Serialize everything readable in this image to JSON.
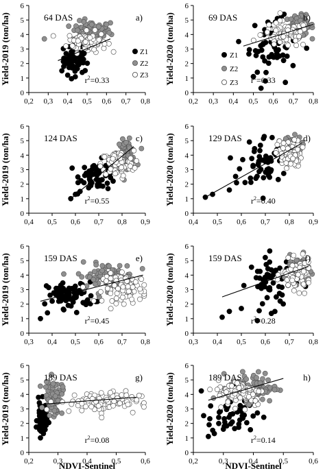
{
  "figure": {
    "xlabel": "NDVI-Sentinel",
    "legend": [
      "Z1",
      "Z2",
      "Z3"
    ]
  },
  "zone_colors": {
    "Z1": "#000000",
    "Z2": "#8f8f8f",
    "Z3": "#ffffff"
  },
  "chart_data": [
    {
      "type": "scatter",
      "panel": "a)",
      "das": "64 DAS",
      "r2": "0.33",
      "ylabel": "Yield-2019 (ton/ha)",
      "xlim": [
        0.2,
        0.8
      ],
      "xticks": [
        "0,2",
        "0,3",
        "0,4",
        "0,5",
        "0,6",
        "0,7",
        "0,8"
      ],
      "ylim": [
        0,
        6
      ],
      "yticks": [
        "0",
        "1",
        "2",
        "3",
        "4",
        "5",
        "6"
      ],
      "legend": false,
      "trendline": {
        "x": [
          0.35,
          0.62
        ],
        "y": [
          2.2,
          3.7
        ]
      },
      "series": [
        {
          "zone": "Z1",
          "cx": 0.45,
          "cy": 2.4,
          "sx": 0.035,
          "sy": 0.5,
          "n": 60,
          "points": [
            [
              0.37,
              1.5
            ],
            [
              0.38,
              1.8
            ],
            [
              0.4,
              1.2
            ],
            [
              0.42,
              0.95
            ],
            [
              0.41,
              2.1
            ]
          ]
        },
        {
          "zone": "Z2",
          "cx": 0.52,
          "cy": 4.2,
          "sx": 0.05,
          "sy": 0.35,
          "n": 70,
          "points": [
            [
              0.28,
              3.7
            ],
            [
              0.62,
              4.8
            ],
            [
              0.6,
              4.7
            ]
          ]
        },
        {
          "zone": "Z3",
          "cx": 0.5,
          "cy": 3.5,
          "sx": 0.05,
          "sy": 0.35,
          "n": 80,
          "points": []
        }
      ]
    },
    {
      "type": "scatter",
      "panel": "b)",
      "das": "69 DAS",
      "r2": "0.33",
      "ylabel": "Yield-2020 (ton/ha)",
      "xlim": [
        0.2,
        0.8
      ],
      "xticks": [
        "0,2",
        "0,3",
        "0,4",
        "0,5",
        "0,6",
        "0,7",
        "0,8"
      ],
      "ylim": [
        0,
        6
      ],
      "yticks": [
        "0",
        "1",
        "2",
        "3",
        "4",
        "5",
        "6"
      ],
      "legend": true,
      "trendline": {
        "x": [
          0.45,
          0.8
        ],
        "y": [
          3.2,
          4.7
        ]
      },
      "series": [
        {
          "zone": "Z1",
          "cx": 0.6,
          "cy": 3.3,
          "sx": 0.06,
          "sy": 0.9,
          "n": 60,
          "points": [
            [
              0.62,
              5.1
            ],
            [
              0.64,
              5.2
            ],
            [
              0.5,
              1.1
            ],
            [
              0.52,
              1.4
            ],
            [
              0.56,
              0.8
            ],
            [
              0.66,
              0.7
            ]
          ]
        },
        {
          "zone": "Z2",
          "cx": 0.73,
          "cy": 4.6,
          "sx": 0.035,
          "sy": 0.35,
          "n": 70,
          "points": []
        },
        {
          "zone": "Z3",
          "cx": 0.66,
          "cy": 4.0,
          "sx": 0.06,
          "sy": 0.45,
          "n": 90,
          "points": []
        }
      ]
    },
    {
      "type": "scatter",
      "panel": "c)",
      "das": "124 DAS",
      "r2": "0.55",
      "ylabel": "Yield-2019 (ton/ha)",
      "xlim": [
        0.4,
        0.9
      ],
      "xticks": [
        "0,4",
        "0,5",
        "0,6",
        "0,7",
        "0,8",
        "0,9"
      ],
      "ylim": [
        0,
        6
      ],
      "yticks": [
        "0",
        "1",
        "2",
        "3",
        "4",
        "5",
        "6"
      ],
      "legend": false,
      "trendline": {
        "x": [
          0.58,
          0.85
        ],
        "y": [
          1.0,
          4.6
        ]
      },
      "series": [
        {
          "zone": "Z1",
          "cx": 0.7,
          "cy": 2.6,
          "sx": 0.04,
          "sy": 0.5,
          "n": 60,
          "points": [
            [
              0.58,
              1.0
            ],
            [
              0.6,
              1.3
            ],
            [
              0.62,
              1.5
            ],
            [
              0.64,
              2.6
            ]
          ]
        },
        {
          "zone": "Z2",
          "cx": 0.82,
          "cy": 4.1,
          "sx": 0.02,
          "sy": 0.45,
          "n": 70,
          "points": []
        },
        {
          "zone": "Z3",
          "cx": 0.78,
          "cy": 3.4,
          "sx": 0.035,
          "sy": 0.45,
          "n": 90,
          "points": []
        }
      ]
    },
    {
      "type": "scatter",
      "panel": "d)",
      "das": "129 DAS",
      "r2": "0.40",
      "ylabel": "Yield-2020 (ton/ha)",
      "xlim": [
        0.4,
        0.9
      ],
      "xticks": [
        "0,4",
        "0,5",
        "0,6",
        "0,7",
        "0,8",
        "0,9"
      ],
      "ylim": [
        0,
        6
      ],
      "yticks": [
        "0",
        "1",
        "2",
        "3",
        "4",
        "5",
        "6"
      ],
      "legend": false,
      "trendline": {
        "x": [
          0.45,
          0.85
        ],
        "y": [
          1.1,
          4.8
        ]
      },
      "series": [
        {
          "zone": "Z1",
          "cx": 0.7,
          "cy": 3.6,
          "sx": 0.05,
          "sy": 0.9,
          "n": 60,
          "points": [
            [
              0.45,
              1.1
            ],
            [
              0.48,
              1.3
            ],
            [
              0.55,
              1.6
            ],
            [
              0.58,
              2.1
            ]
          ]
        },
        {
          "zone": "Z2",
          "cx": 0.81,
          "cy": 4.6,
          "sx": 0.02,
          "sy": 0.35,
          "n": 70,
          "points": []
        },
        {
          "zone": "Z3",
          "cx": 0.8,
          "cy": 4.1,
          "sx": 0.025,
          "sy": 0.45,
          "n": 90,
          "points": []
        }
      ]
    },
    {
      "type": "scatter",
      "panel": "e)",
      "das": "159 DAS",
      "r2": "0.45",
      "ylabel": "Yield-2019 (ton/ha)",
      "xlim": [
        0.3,
        0.8
      ],
      "xticks": [
        "0,3",
        "0,4",
        "0,5",
        "0,6",
        "0,7",
        "0,8"
      ],
      "ylim": [
        0,
        6
      ],
      "yticks": [
        "0",
        "1",
        "2",
        "3",
        "4",
        "5",
        "6"
      ],
      "legend": false,
      "trendline": {
        "x": [
          0.35,
          0.79
        ],
        "y": [
          2.2,
          4.0
        ]
      },
      "series": [
        {
          "zone": "Z1",
          "cx": 0.48,
          "cy": 2.6,
          "sx": 0.05,
          "sy": 0.45,
          "n": 80,
          "points": [
            [
              0.35,
              1.0
            ],
            [
              0.38,
              1.4
            ]
          ]
        },
        {
          "zone": "Z2",
          "cx": 0.63,
          "cy": 3.9,
          "sx": 0.06,
          "sy": 0.45,
          "n": 80,
          "points": []
        },
        {
          "zone": "Z3",
          "cx": 0.72,
          "cy": 3.1,
          "sx": 0.05,
          "sy": 0.5,
          "n": 80,
          "points": []
        }
      ]
    },
    {
      "type": "scatter",
      "panel": "f)",
      "das": "159 DAS",
      "r2": "0.28",
      "ylabel": "Yield-2020 (ton/ha)",
      "xlim": [
        0.3,
        0.8
      ],
      "xticks": [
        "0,3",
        "0,4",
        "0,5",
        "0,6",
        "0,7",
        "0,8"
      ],
      "ylim": [
        0,
        6
      ],
      "yticks": [
        "0",
        "1",
        "2",
        "3",
        "4",
        "5",
        "6"
      ],
      "legend": false,
      "trendline": {
        "x": [
          0.42,
          0.78
        ],
        "y": [
          2.5,
          4.6
        ]
      },
      "series": [
        {
          "zone": "Z1",
          "cx": 0.63,
          "cy": 3.5,
          "sx": 0.05,
          "sy": 0.9,
          "n": 60,
          "points": [
            [
              0.42,
              1.1
            ],
            [
              0.45,
              1.5
            ],
            [
              0.5,
              1.7
            ]
          ]
        },
        {
          "zone": "Z2",
          "cx": 0.73,
          "cy": 4.4,
          "sx": 0.025,
          "sy": 0.45,
          "n": 60,
          "points": []
        },
        {
          "zone": "Z3",
          "cx": 0.73,
          "cy": 4.0,
          "sx": 0.03,
          "sy": 0.5,
          "n": 90,
          "points": []
        }
      ]
    },
    {
      "type": "scatter",
      "panel": "g)",
      "das": "189 DAS",
      "r2": "0.08",
      "ylabel": "Yield-2019 (ton/ha)",
      "xlim": [
        0.2,
        0.6
      ],
      "xticks": [
        "0,2",
        "0,3",
        "0,4",
        "0,5",
        "0,6"
      ],
      "ylim": [
        0,
        6
      ],
      "yticks": [
        "0",
        "1",
        "2",
        "3",
        "4",
        "5",
        "6"
      ],
      "legend": false,
      "trendline": {
        "x": [
          0.23,
          0.57
        ],
        "y": [
          3.3,
          3.8
        ]
      },
      "series": [
        {
          "zone": "Z1",
          "cx": 0.245,
          "cy": 2.3,
          "sx": 0.008,
          "sy": 0.6,
          "n": 60,
          "points": [
            [
              0.24,
              1.0
            ],
            [
              0.25,
              1.3
            ]
          ]
        },
        {
          "zone": "Z2",
          "cx": 0.285,
          "cy": 3.8,
          "sx": 0.015,
          "sy": 0.6,
          "n": 70,
          "points": []
        },
        {
          "zone": "Z3",
          "cx": 0.44,
          "cy": 3.5,
          "sx": 0.07,
          "sy": 0.35,
          "n": 90,
          "points": [
            [
              0.45,
              2.4
            ],
            [
              0.54,
              3.3
            ]
          ]
        }
      ]
    },
    {
      "type": "scatter",
      "panel": "h)",
      "das": "189 DAS",
      "r2": "0.14",
      "ylabel": "Yield-2020 (ton/ha)",
      "xlim": [
        0.2,
        0.6
      ],
      "xticks": [
        "0,2",
        "0,3",
        "0,4",
        "0,5",
        "0,6"
      ],
      "ylim": [
        0,
        6
      ],
      "yticks": [
        "0",
        "1",
        "2",
        "3",
        "4",
        "5",
        "6"
      ],
      "legend": false,
      "trendline": {
        "x": [
          0.25,
          0.5
        ],
        "y": [
          3.6,
          5.1
        ]
      },
      "series": [
        {
          "zone": "Z1",
          "cx": 0.33,
          "cy": 2.8,
          "sx": 0.04,
          "sy": 0.9,
          "n": 60,
          "points": [
            [
              0.25,
              1.1
            ],
            [
              0.27,
              1.3
            ],
            [
              0.3,
              1.6
            ]
          ]
        },
        {
          "zone": "Z2",
          "cx": 0.4,
          "cy": 4.5,
          "sx": 0.04,
          "sy": 0.5,
          "n": 80,
          "points": []
        },
        {
          "zone": "Z3",
          "cx": 0.36,
          "cy": 4.1,
          "sx": 0.04,
          "sy": 0.45,
          "n": 90,
          "points": []
        }
      ]
    }
  ]
}
